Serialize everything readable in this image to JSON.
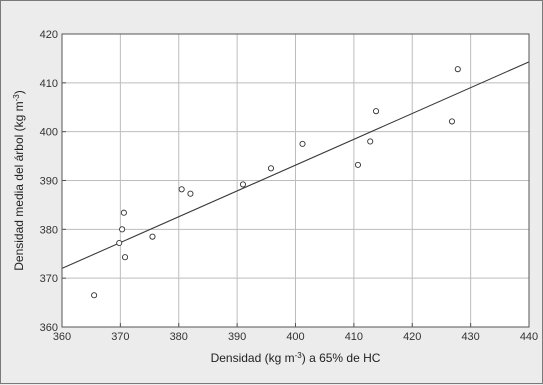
{
  "chart_data": {
    "type": "scatter",
    "title": "",
    "xlabel": {
      "before": "Densidad (kg m",
      "sup": "-3",
      "after": ") a 65% de HC"
    },
    "ylabel": {
      "before": "Densidad media del árbol (kg m",
      "sup": "-3",
      "after": ")"
    },
    "xlim": [
      360,
      440
    ],
    "ylim": [
      360,
      420
    ],
    "xticks": [
      360,
      370,
      380,
      390,
      400,
      410,
      420,
      430,
      440
    ],
    "yticks": [
      360,
      370,
      380,
      390,
      400,
      410,
      420
    ],
    "grid": true,
    "points": [
      {
        "x": 365.5,
        "y": 366.5
      },
      {
        "x": 369.8,
        "y": 377.2
      },
      {
        "x": 370.3,
        "y": 380.0
      },
      {
        "x": 370.6,
        "y": 383.4
      },
      {
        "x": 370.8,
        "y": 374.3
      },
      {
        "x": 375.5,
        "y": 378.5
      },
      {
        "x": 380.5,
        "y": 388.2
      },
      {
        "x": 382.0,
        "y": 387.3
      },
      {
        "x": 391.0,
        "y": 389.2
      },
      {
        "x": 395.8,
        "y": 392.5
      },
      {
        "x": 401.2,
        "y": 397.5
      },
      {
        "x": 410.7,
        "y": 393.2
      },
      {
        "x": 412.8,
        "y": 398.0
      },
      {
        "x": 413.8,
        "y": 404.2
      },
      {
        "x": 426.8,
        "y": 402.1
      },
      {
        "x": 427.8,
        "y": 412.8
      }
    ],
    "fit_line": {
      "x": [
        360,
        440
      ],
      "y": [
        372.0,
        414.3
      ]
    }
  }
}
